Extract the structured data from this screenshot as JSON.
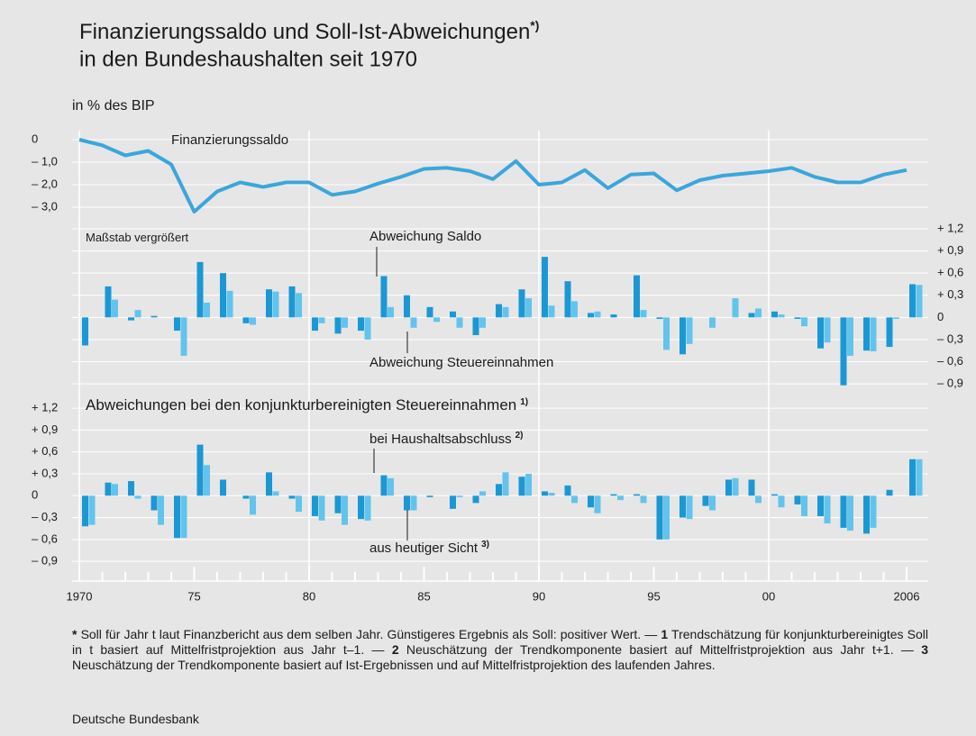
{
  "title": [
    "Finanzierungssaldo und Soll-Ist-Abweichungen",
    "in den Bundeshaushalten seit 1970"
  ],
  "title_note": "*)",
  "chart_data": [
    {
      "type": "line",
      "y_label": "in % des BIP",
      "x": [
        1970,
        1971,
        1972,
        1973,
        1974,
        1975,
        1976,
        1977,
        1978,
        1979,
        1980,
        1981,
        1982,
        1983,
        1984,
        1985,
        1986,
        1987,
        1988,
        1989,
        1990,
        1991,
        1992,
        1993,
        1994,
        1995,
        1996,
        1997,
        1998,
        1999,
        2000,
        2001,
        2002,
        2003,
        2004,
        2005,
        2006
      ],
      "series": [
        {
          "name": "Finanzierungssaldo",
          "color": "#3aa6dc",
          "values": [
            0,
            -0.25,
            -0.7,
            -0.5,
            -1.1,
            -3.2,
            -2.3,
            -1.9,
            -2.1,
            -1.9,
            -1.9,
            -2.45,
            -2.3,
            -1.95,
            -1.65,
            -1.3,
            -1.25,
            -1.4,
            -1.75,
            -0.95,
            -2.0,
            -1.9,
            -1.35,
            -2.15,
            -1.55,
            -1.5,
            -2.25,
            -1.8,
            -1.6,
            -1.5,
            -1.4,
            -1.25,
            -1.65,
            -1.9,
            -1.9,
            -1.55,
            -1.35
          ]
        }
      ],
      "xlim": [
        1970,
        2007.2
      ],
      "ylim": [
        -3.4,
        0.4
      ],
      "yticks": [
        0,
        {
          "value": -1,
          "label": "– 1,0"
        },
        {
          "value": -2,
          "label": "– 2,0"
        },
        {
          "value": -3,
          "label": "– 3,0"
        }
      ],
      "ytick_side": "left",
      "grid": true
    },
    {
      "type": "bar",
      "subtitle": "Maßstab vergrößert",
      "x": [
        1970,
        1971,
        1972,
        1973,
        1974,
        1975,
        1976,
        1977,
        1978,
        1979,
        1980,
        1981,
        1982,
        1983,
        1984,
        1985,
        1986,
        1987,
        1988,
        1989,
        1990,
        1991,
        1992,
        1993,
        1994,
        1995,
        1996,
        1997,
        1998,
        1999,
        2000,
        2001,
        2002,
        2003,
        2004,
        2005,
        2006
      ],
      "series": [
        {
          "name": "Abweichung Saldo",
          "color": "#1b98d4",
          "values": [
            -0.38,
            0.42,
            -0.04,
            0.02,
            -0.18,
            0.75,
            0.6,
            -0.08,
            0.38,
            0.42,
            -0.18,
            -0.22,
            -0.18,
            0.56,
            0.3,
            0.14,
            0.08,
            -0.24,
            0.18,
            0.38,
            0.82,
            0.49,
            0.06,
            0.04,
            0.57,
            -0.02,
            -0.5,
            0,
            0,
            0.06,
            0.08,
            -0.02,
            -0.42,
            -0.92,
            -0.45,
            -0.4,
            0.45
          ]
        },
        {
          "name": "Abweichung Steuereinnahmen",
          "color": "#62c4ec",
          "values": [
            0,
            0.24,
            0.1,
            0,
            -0.52,
            0.2,
            0.36,
            -0.1,
            0.35,
            0.33,
            -0.08,
            -0.14,
            -0.3,
            0.14,
            -0.14,
            -0.06,
            -0.14,
            -0.14,
            0.14,
            0.26,
            0.16,
            0.22,
            0.08,
            0,
            0.1,
            -0.44,
            -0.36,
            -0.14,
            0.26,
            0.12,
            0.04,
            -0.12,
            -0.34,
            -0.52,
            -0.46,
            -0.02,
            0.44
          ]
        }
      ],
      "xlim": [
        1970,
        2007.2
      ],
      "ylim": [
        -1.07,
        1.31
      ],
      "yticks": [
        {
          "value": 1.2,
          "label": "+ 1,2"
        },
        {
          "value": 0.9,
          "label": "+ 0,9"
        },
        {
          "value": 0.6,
          "label": "+ 0,6"
        },
        {
          "value": 0.3,
          "label": "+ 0,3"
        },
        0,
        {
          "value": -0.3,
          "label": "– 0,3"
        },
        {
          "value": -0.6,
          "label": "– 0,6"
        },
        {
          "value": -0.9,
          "label": "– 0,9"
        }
      ],
      "ytick_side": "right",
      "grid": true
    },
    {
      "type": "bar",
      "subtitle": "Abweichungen bei den konjunkturbereinigten Steuereinnahmen",
      "subtitle_note": "1)",
      "x": [
        1970,
        1971,
        1972,
        1973,
        1974,
        1975,
        1976,
        1977,
        1978,
        1979,
        1980,
        1981,
        1982,
        1983,
        1984,
        1985,
        1986,
        1987,
        1988,
        1989,
        1990,
        1991,
        1992,
        1993,
        1994,
        1995,
        1996,
        1997,
        1998,
        1999,
        2000,
        2001,
        2002,
        2003,
        2004,
        2005,
        2006
      ],
      "series": [
        {
          "name": "bei Haushaltsabschluss",
          "note": "2)",
          "color": "#1b98d4",
          "values": [
            -0.42,
            0.18,
            0.2,
            -0.2,
            -0.58,
            0.7,
            0.22,
            -0.04,
            0.32,
            -0.04,
            -0.28,
            -0.24,
            -0.32,
            0.28,
            -0.2,
            -0.02,
            -0.18,
            -0.1,
            0.16,
            0.26,
            0.06,
            0.14,
            -0.16,
            0.02,
            0.02,
            -0.6,
            -0.3,
            -0.14,
            0.22,
            0.22,
            0.02,
            -0.12,
            -0.28,
            -0.44,
            -0.52,
            0.08,
            0.5
          ]
        },
        {
          "name": "aus heutiger Sicht",
          "note": "3)",
          "color": "#62c4ec",
          "values": [
            -0.4,
            0.16,
            -0.04,
            -0.4,
            -0.58,
            0.42,
            0,
            -0.26,
            0.06,
            -0.22,
            -0.34,
            -0.4,
            -0.34,
            0.24,
            -0.2,
            0,
            -0.02,
            0.06,
            0.32,
            0.3,
            0.04,
            -0.1,
            -0.24,
            -0.06,
            -0.1,
            -0.6,
            -0.32,
            -0.2,
            0.24,
            -0.1,
            -0.16,
            -0.28,
            -0.38,
            -0.48,
            -0.44,
            0,
            0.5
          ]
        }
      ],
      "xlim": [
        1970,
        2007.2
      ],
      "ylim": [
        -1.17,
        1.3
      ],
      "yticks": [
        {
          "value": 1.2,
          "label": "+ 1,2"
        },
        {
          "value": 0.9,
          "label": "+ 0,9"
        },
        {
          "value": 0.6,
          "label": "+ 0,6"
        },
        {
          "value": 0.3,
          "label": "+ 0,3"
        },
        0,
        {
          "value": -0.3,
          "label": "– 0,3"
        },
        {
          "value": -0.6,
          "label": "– 0,6"
        },
        {
          "value": -0.9,
          "label": "– 0,9"
        }
      ],
      "ytick_side": "left",
      "xticks": [
        1970,
        {
          "value": 1975,
          "label": "75"
        },
        {
          "value": 1980,
          "label": "80"
        },
        {
          "value": 1985,
          "label": "85"
        },
        {
          "value": 1990,
          "label": "90"
        },
        {
          "value": 1995,
          "label": "95"
        },
        {
          "value": 2000,
          "label": "00"
        },
        2006
      ],
      "grid": true
    }
  ],
  "notes": [
    {
      "marker": "*",
      "text": "Soll für Jahr t laut Finanzbericht aus dem selben Jahr. Günstigeres Ergebnis als Soll: positiver Wert. —"
    },
    {
      "marker": "1",
      "text": "Trendschätzung für konjunkturbereinigtes Soll in t basiert auf Mittelfristprojektion aus Jahr t–1. —"
    },
    {
      "marker": "2",
      "text": "Neuschätzung der Trendkomponente basiert auf Mittelfristprojektion aus Jahr t+1. —"
    },
    {
      "marker": "3",
      "text": "Neuschätzung der Trendkomponente basiert auf Ist-Ergebnissen und auf Mittelfristprojektion des laufenden Jahres."
    }
  ],
  "source": "Deutsche Bundesbank"
}
